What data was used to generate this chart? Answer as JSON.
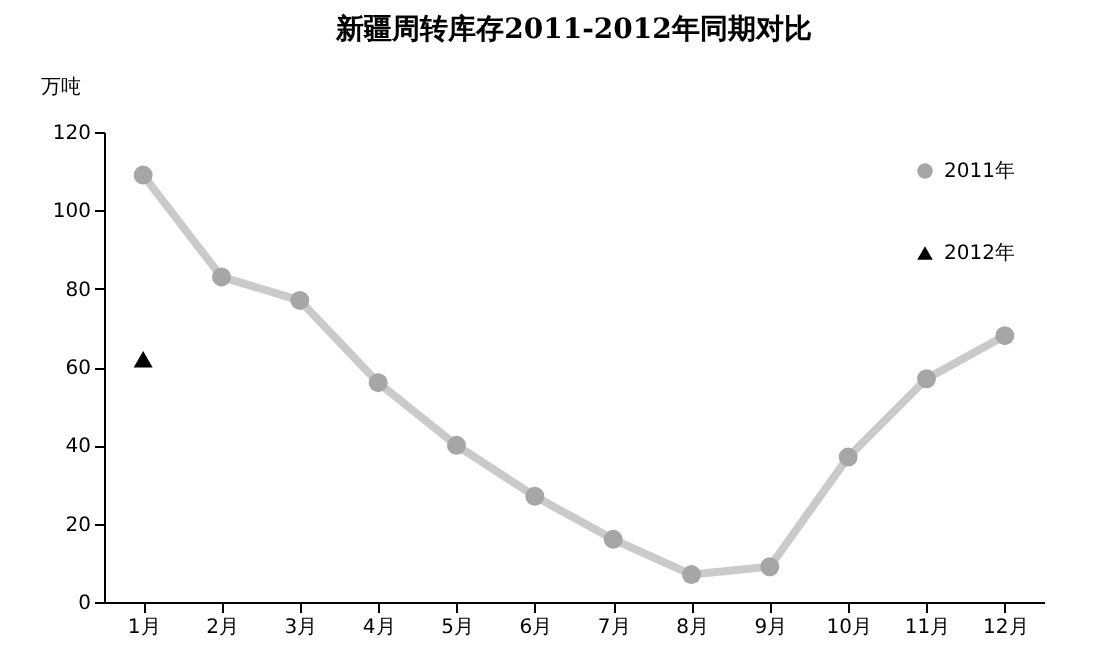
{
  "chart_data": {
    "type": "line",
    "title": "新疆周转库存2011-2012年同期对比",
    "ylabel": "万吨",
    "categories": [
      "1月",
      "2月",
      "3月",
      "4月",
      "5月",
      "6月",
      "7月",
      "8月",
      "9月",
      "10月",
      "11月",
      "12月"
    ],
    "series": [
      {
        "name": "2011年",
        "color": "#a6a6a6",
        "marker": "circle",
        "values": [
          109,
          83,
          77,
          56,
          40,
          27,
          16,
          7,
          9,
          37,
          57,
          68
        ]
      },
      {
        "name": "2012年",
        "color": "#000000",
        "marker": "triangle",
        "values": [
          62,
          null,
          null,
          null,
          null,
          null,
          null,
          null,
          null,
          null,
          null,
          null
        ]
      }
    ],
    "ylim": [
      0,
      120
    ],
    "yticks": [
      0,
      20,
      40,
      60,
      80,
      100,
      120
    ],
    "legend": "top right"
  }
}
